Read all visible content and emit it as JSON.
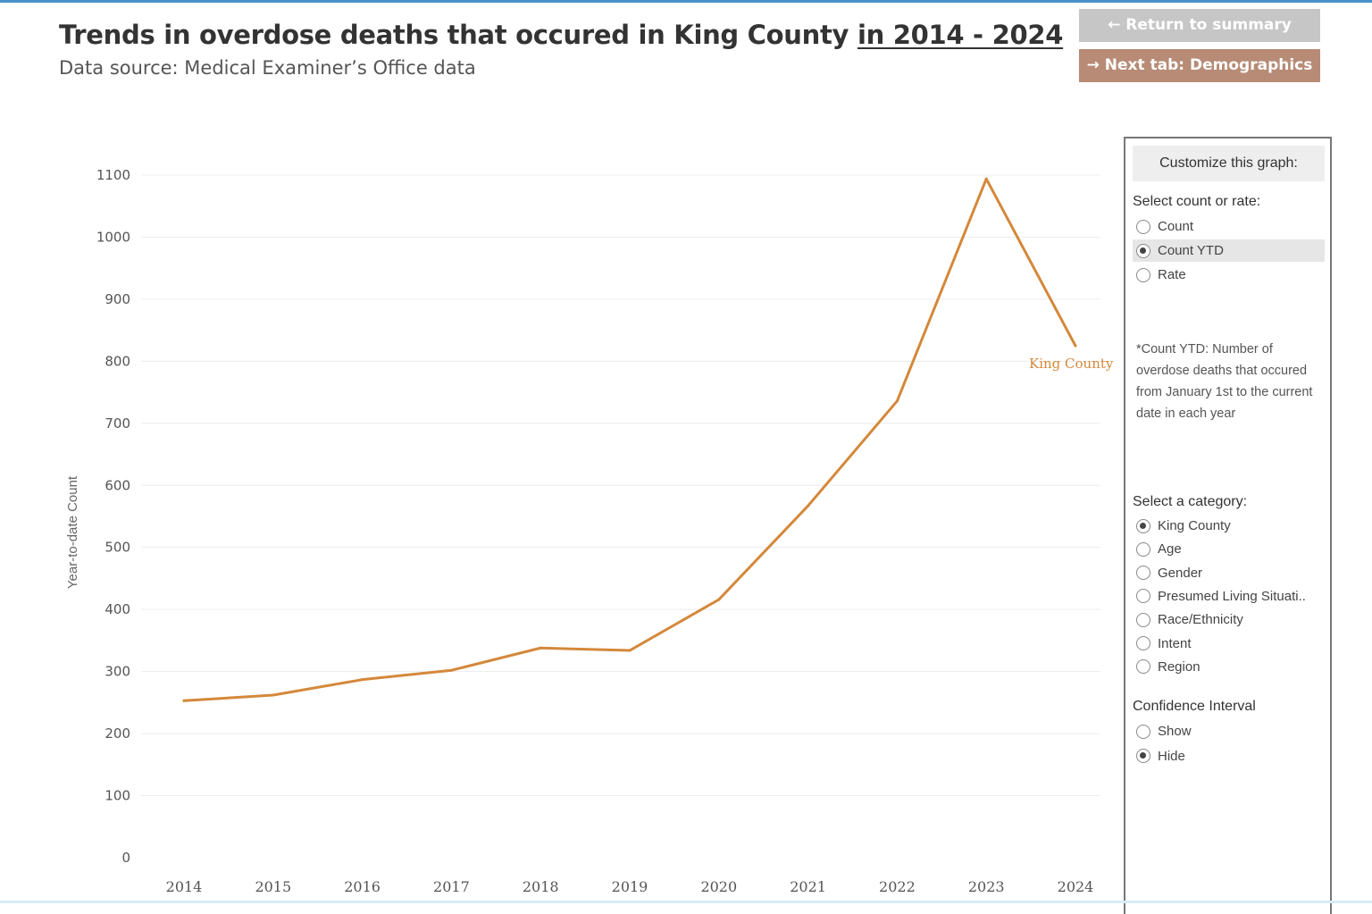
{
  "header": {
    "title_main": "Trends in overdose deaths that occured in King County",
    "title_years": "in 2014 - 2024",
    "subtitle": "Data source: Medical Examiner’s Office data"
  },
  "buttons": {
    "return_label": "← Return to summary",
    "next_label": "→ Next tab: Demographics"
  },
  "panel": {
    "header": "Customize this graph:",
    "count_rate_label": "Select count or rate:",
    "count_rate_options": [
      {
        "label": "Count",
        "selected": false
      },
      {
        "label": "Count YTD",
        "selected": true
      },
      {
        "label": "Rate",
        "selected": false
      }
    ],
    "note": "*Count YTD: Number of overdose deaths that occured from January 1st to the current date in each year",
    "category_label": "Select a category:",
    "category_options": [
      {
        "label": "King County",
        "selected": true
      },
      {
        "label": "Age",
        "selected": false
      },
      {
        "label": "Gender",
        "selected": false
      },
      {
        "label": "Presumed Living Situati..",
        "selected": false
      },
      {
        "label": "Race/Ethnicity",
        "selected": false
      },
      {
        "label": "Intent",
        "selected": false
      },
      {
        "label": "Region",
        "selected": false
      }
    ],
    "ci_label": "Confidence Interval",
    "ci_options": [
      {
        "label": "Show",
        "selected": false
      },
      {
        "label": "Hide",
        "selected": true
      }
    ]
  },
  "chart_data": {
    "type": "line",
    "ylabel": "Year-to-date Count",
    "xlabel": "",
    "x": [
      "2014",
      "2015",
      "2016",
      "2017",
      "2018",
      "2019",
      "2020",
      "2021",
      "2022",
      "2023",
      "2024"
    ],
    "ylim": [
      0,
      1100
    ],
    "yticks": [
      0,
      100,
      200,
      300,
      400,
      500,
      600,
      700,
      800,
      900,
      1000,
      1100
    ],
    "grid": true,
    "series": [
      {
        "name": "King County",
        "color": "#d4883a",
        "values": [
          253,
          262,
          287,
          302,
          338,
          334,
          416,
          567,
          736,
          1094,
          825
        ]
      }
    ]
  }
}
